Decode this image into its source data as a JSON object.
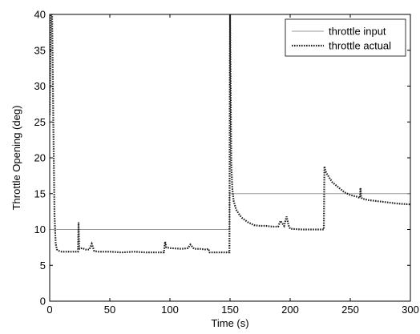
{
  "chart_data": {
    "type": "line",
    "xlabel": "Time (s)",
    "ylabel": "Throttle Opening (deg)",
    "xlim": [
      0,
      300
    ],
    "ylim": [
      0,
      40
    ],
    "xticks": [
      0,
      50,
      100,
      150,
      200,
      250,
      300
    ],
    "yticks": [
      0,
      5,
      10,
      15,
      20,
      25,
      30,
      35,
      40
    ],
    "grid": false,
    "legend_position": "top-right",
    "series": [
      {
        "name": "throttle input",
        "style": "solid",
        "color": "#999999",
        "x": [
          0,
          149.7,
          149.7,
          300
        ],
        "y": [
          10,
          10,
          15,
          15
        ]
      },
      {
        "name": "throttle actual",
        "style": "dotted",
        "color": "#222222",
        "x": [
          0,
          1,
          2,
          3,
          4,
          5,
          6,
          8,
          10,
          15,
          20,
          23.5,
          24,
          24.5,
          25,
          27,
          30,
          33,
          35,
          37,
          40,
          50,
          60,
          70,
          80,
          90,
          95,
          96,
          97,
          100,
          110,
          115,
          117,
          120,
          125,
          130,
          132,
          133,
          140,
          148,
          149.5,
          150,
          151,
          152,
          153,
          155,
          158,
          160,
          165,
          170,
          175,
          180,
          185,
          190,
          192,
          195,
          197,
          199,
          200,
          210,
          220,
          228,
          228.5,
          229,
          230,
          235,
          240,
          245,
          250,
          255,
          258,
          258.5,
          259,
          260,
          265,
          270,
          280,
          290,
          300
        ],
        "y": [
          26,
          40,
          40,
          25,
          12,
          8,
          7.2,
          7,
          6.9,
          6.9,
          6.9,
          6.9,
          11,
          7.4,
          7.3,
          7.4,
          7.2,
          7.2,
          8,
          7,
          6.9,
          6.9,
          6.8,
          6.9,
          6.8,
          6.8,
          6.8,
          8.3,
          7.5,
          7.4,
          7.3,
          7.4,
          7.9,
          7.3,
          7.3,
          7.2,
          7.3,
          6.8,
          6.8,
          6.8,
          6.8,
          40,
          19,
          15.5,
          14,
          12.8,
          12,
          11.6,
          11,
          10.6,
          10.5,
          10.5,
          10.4,
          10.4,
          11.2,
          10.5,
          11.8,
          10.4,
          10.1,
          10,
          10,
          10,
          18.8,
          18.4,
          17.9,
          16.6,
          15.9,
          15.2,
          14.8,
          14.6,
          14.4,
          15.8,
          14.5,
          14.3,
          14.1,
          14,
          13.8,
          13.6,
          13.5
        ]
      }
    ]
  }
}
